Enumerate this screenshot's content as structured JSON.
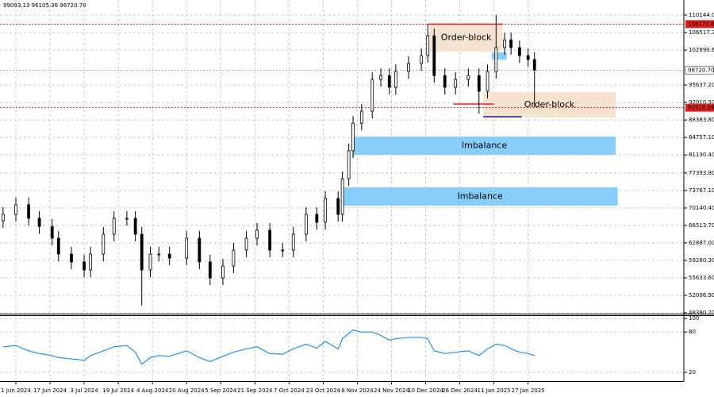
{
  "chart_data": {
    "type": "candlestick",
    "header": "99093.13 96105.36 98720.70",
    "x": [
      -6,
      0,
      6,
      11,
      17,
      20,
      26,
      32,
      35,
      41,
      46,
      52,
      56,
      59,
      63,
      67,
      72,
      80,
      86,
      91,
      97,
      102,
      108,
      113,
      119,
      125,
      130,
      136,
      141,
      145,
      151,
      153,
      156,
      158,
      162,
      167,
      171,
      175,
      178,
      184,
      190,
      193,
      196,
      201,
      206,
      212,
      217,
      221,
      225,
      229,
      232,
      236,
      240,
      243
    ],
    "open": [
      67500,
      68800,
      70800,
      68000,
      66300,
      63860,
      60570,
      58930,
      57270,
      60570,
      64690,
      67980,
      67980,
      64690,
      57270,
      60570,
      60570,
      59740,
      63860,
      58930,
      55630,
      58100,
      61390,
      63860,
      65510,
      61390,
      61390,
      64690,
      68800,
      67160,
      72100,
      68800,
      76200,
      82000,
      87700,
      90200,
      96800,
      97600,
      95170,
      98450,
      100100,
      101740,
      105860,
      97600,
      95170,
      96800,
      97600,
      94330,
      98450,
      103400,
      105000,
      103400,
      101740,
      100920
    ],
    "high": [
      70300,
      72300,
      72300,
      69500,
      67800,
      65360,
      62070,
      60430,
      62070,
      66190,
      69480,
      69480,
      69480,
      66190,
      62070,
      62070,
      62070,
      65360,
      65360,
      60430,
      59600,
      62890,
      65360,
      67010,
      67010,
      62890,
      66190,
      70300,
      70300,
      73600,
      73600,
      77700,
      83500,
      89200,
      91700,
      98300,
      99100,
      99100,
      99950,
      101600,
      103240,
      108300,
      107360,
      99100,
      98300,
      99100,
      99100,
      99950,
      110144,
      106500,
      106500,
      104900,
      103240,
      102420
    ],
    "low": [
      66000,
      67300,
      66500,
      64800,
      62360,
      59070,
      57430,
      55770,
      55770,
      59070,
      63190,
      66480,
      63190,
      49900,
      55770,
      59070,
      58240,
      58240,
      57430,
      54130,
      54130,
      56600,
      59890,
      62360,
      59890,
      59890,
      59890,
      63190,
      65660,
      65660,
      67300,
      67300,
      74700,
      80500,
      86200,
      88700,
      95300,
      93670,
      93670,
      96950,
      98600,
      100240,
      96100,
      93670,
      93670,
      95300,
      89700,
      92830,
      96950,
      101900,
      101900,
      100240,
      99420,
      91040
    ],
    "close": [
      68800,
      70800,
      68000,
      66300,
      63860,
      60570,
      58930,
      57270,
      60570,
      64690,
      67980,
      67980,
      64690,
      57270,
      60570,
      60570,
      59740,
      63860,
      58930,
      55630,
      58100,
      61390,
      63860,
      65510,
      61390,
      61390,
      64690,
      68800,
      67160,
      72100,
      68800,
      76200,
      82000,
      87700,
      90200,
      96800,
      97600,
      95170,
      98450,
      100100,
      101740,
      105860,
      97600,
      95170,
      96800,
      97600,
      94330,
      98450,
      103400,
      105000,
      103400,
      101740,
      100920,
      98720
    ],
    "color": "#000000",
    "xlim": [
      -7.43,
      312.98
    ],
    "xticks": [
      {
        "value": 0,
        "label": "1 Jun 2024"
      },
      {
        "value": 16,
        "label": "17 Jun 2024"
      },
      {
        "value": 32,
        "label": "3 Jul 2024"
      },
      {
        "value": 48,
        "label": "19 Jul 2024"
      },
      {
        "value": 64,
        "label": "4 Aug 2024"
      },
      {
        "value": 80,
        "label": "20 Aug 2024"
      },
      {
        "value": 96,
        "label": "5 Sep 2024"
      },
      {
        "value": 112,
        "label": "21 Sep 2024"
      },
      {
        "value": 128,
        "label": "7 Oct 2024"
      },
      {
        "value": 144,
        "label": "23 Oct 2024"
      },
      {
        "value": 160,
        "label": "8 Nov 2024"
      },
      {
        "value": 176,
        "label": "24 Nov 2024"
      },
      {
        "value": 192,
        "label": "10 Dec 2024"
      },
      {
        "value": 208,
        "label": "26 Dec 2024"
      },
      {
        "value": 224,
        "label": "11 Jan 2025"
      },
      {
        "value": 240,
        "label": "27 Jan 2025"
      }
    ],
    "ylim": [
      48215,
      113273
    ],
    "yticks": [
      {
        "value": 110144,
        "label": "110144.00"
      },
      {
        "value": 106517.3,
        "label": "106517.30"
      },
      {
        "value": 102890.6,
        "label": "102890.60"
      },
      {
        "value": 95637.2,
        "label": "95637.20"
      },
      {
        "value": 92010.5,
        "label": "92010.50"
      },
      {
        "value": 88383.8,
        "label": "88383.80"
      },
      {
        "value": 84757.1,
        "label": "84757.10"
      },
      {
        "value": 81130.4,
        "label": "81130.40"
      },
      {
        "value": 77393.8,
        "label": "77393.80"
      },
      {
        "value": 73767.1,
        "label": "73767.10"
      },
      {
        "value": 70140.4,
        "label": "70140.40"
      },
      {
        "value": 66513.7,
        "label": "66513.70"
      },
      {
        "value": 62887,
        "label": "62887.00"
      },
      {
        "value": 59260.3,
        "label": "59260.30"
      },
      {
        "value": 55633.6,
        "label": "55633.60"
      },
      {
        "value": 52006.9,
        "label": "52006.90"
      },
      {
        "value": 48380.2,
        "label": "48380.20"
      }
    ],
    "grid": true,
    "levels": [
      {
        "value": 108272.88,
        "color": "#e02020"
      },
      {
        "value": 90928.58,
        "color": "#e02020"
      },
      {
        "value": 98720.7,
        "label": "98720.70",
        "color": "#a0a0a0"
      }
    ],
    "zones": [
      {
        "label": "Order-block",
        "x": [
          194,
          228
        ],
        "y": [
          108332,
          102567
        ],
        "color": "#f6e3cf"
      },
      {
        "label": "Order-block",
        "x": [
          219,
          281
        ],
        "y": [
          94168,
          88897
        ],
        "color": "#f6e3cf"
      },
      {
        "label": "Imbalance",
        "x": [
          158,
          281
        ],
        "y": [
          84945,
          81157
        ],
        "color": "#87cefa"
      },
      {
        "label": "Imbalance",
        "x": [
          153,
          282
        ],
        "y": [
          74405,
          70617
        ],
        "color": "#87cefa"
      }
    ],
    "boxes": [
      {
        "x": [
          223,
          230
        ],
        "y": [
          102400,
          100920
        ],
        "color": "#87cefa"
      }
    ],
    "segments": [
      {
        "x": [
          193,
          228
        ],
        "y": 108272.88,
        "color": "#e02020"
      },
      {
        "x": [
          205,
          224
        ],
        "y": 91700,
        "color": "#e02020"
      },
      {
        "x": [
          219,
          237
        ],
        "y": 89060,
        "color": "#1a1aa0"
      }
    ],
    "rsi": {
      "values": [
        58,
        60,
        52,
        48,
        45,
        42,
        40,
        38,
        45,
        52,
        58,
        60,
        50,
        32,
        42,
        45,
        44,
        52,
        42,
        36,
        44,
        50,
        55,
        58,
        48,
        47,
        55,
        62,
        56,
        66,
        55,
        70,
        78,
        83,
        80,
        80,
        75,
        68,
        70,
        72,
        72,
        70,
        52,
        48,
        50,
        52,
        45,
        55,
        62,
        60,
        55,
        50,
        48,
        45
      ],
      "color": "#1e90ff",
      "ylim": [
        7,
        105
      ],
      "yticks": [
        100,
        80,
        20
      ]
    }
  }
}
